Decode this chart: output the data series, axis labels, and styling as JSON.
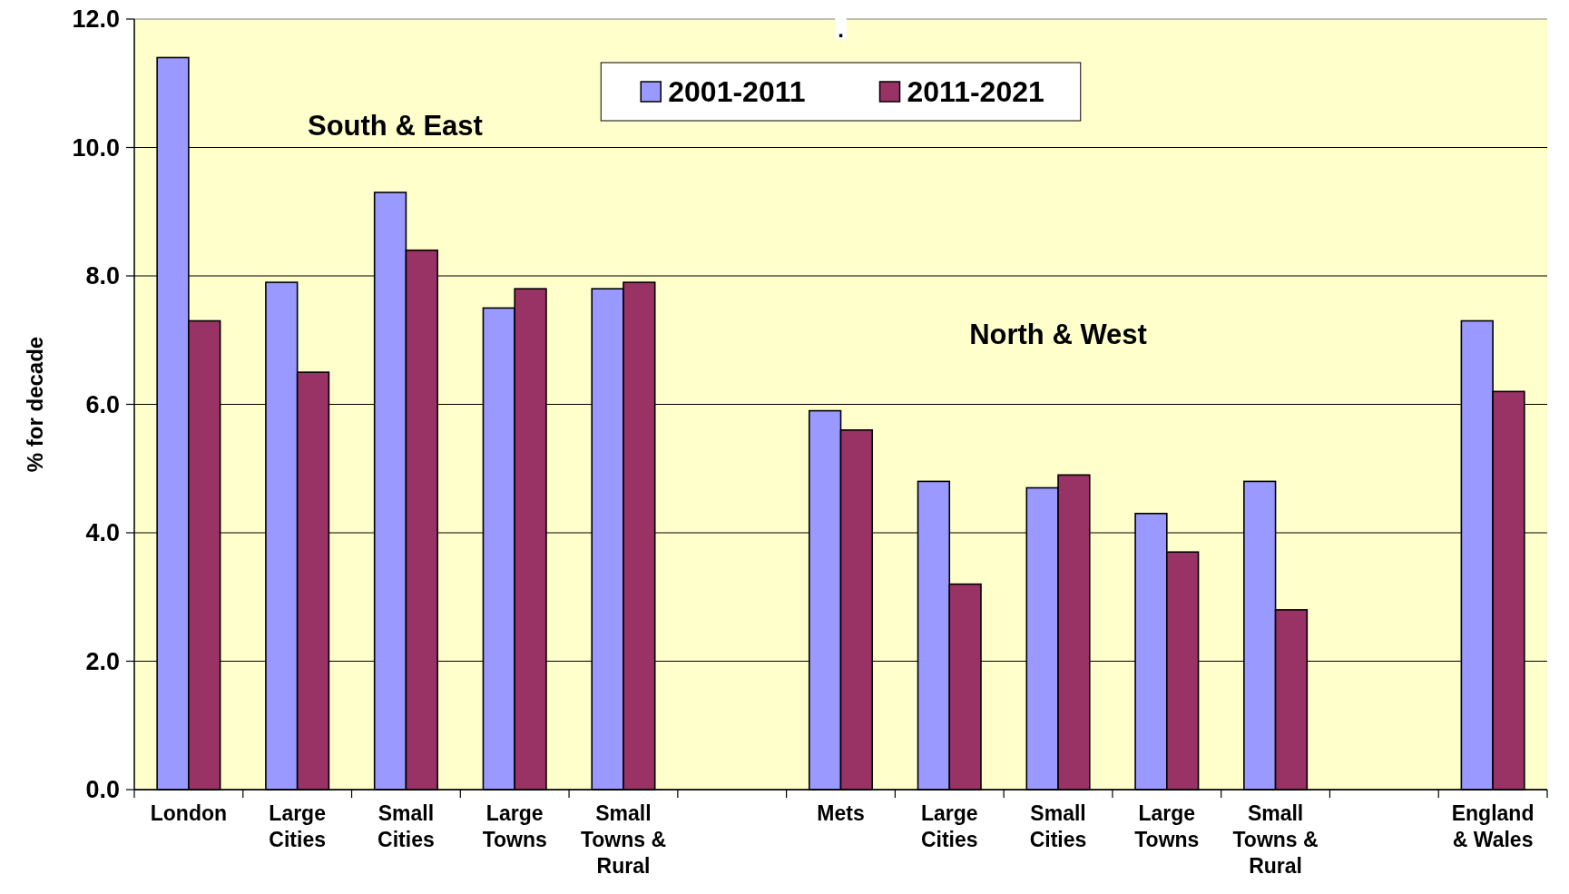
{
  "chart_data": {
    "type": "bar",
    "title": ".",
    "ylabel": "% for decade",
    "categories": [
      "London",
      "Large Cities",
      "Small Cities",
      "Large Towns",
      "Small Towns & Rural",
      null,
      "Mets",
      "Large Cities",
      "Small Cities",
      "Large Towns",
      "Small Towns & Rural",
      null,
      "England & Wales"
    ],
    "series": [
      {
        "name": "2001-2011",
        "color": "#9999ff",
        "values": [
          11.4,
          7.9,
          9.3,
          7.5,
          7.8,
          null,
          5.9,
          4.8,
          4.7,
          4.3,
          4.8,
          null,
          7.3
        ]
      },
      {
        "name": "2011-2021",
        "color": "#993366",
        "values": [
          7.3,
          6.5,
          8.4,
          7.8,
          7.9,
          null,
          5.6,
          3.2,
          4.9,
          3.7,
          2.8,
          null,
          6.2
        ]
      }
    ],
    "ylim": [
      0,
      12
    ],
    "yticks": [
      {
        "value": 0,
        "label": "0.0"
      },
      {
        "value": 2,
        "label": "2.0"
      },
      {
        "value": 4,
        "label": "4.0"
      },
      {
        "value": 6,
        "label": "6.0"
      },
      {
        "value": 8,
        "label": "8.0"
      },
      {
        "value": 10,
        "label": "10.0"
      },
      {
        "value": 12,
        "label": "12.0"
      }
    ],
    "annotations": [
      "South & East",
      "North & West"
    ],
    "grid": "y",
    "legend": "top"
  }
}
